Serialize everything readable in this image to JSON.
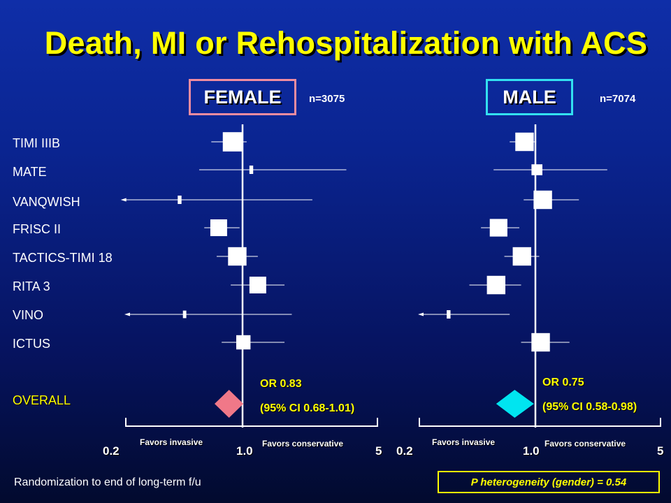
{
  "title": "Death, MI or Rehospitalization with ACS",
  "groups": [
    {
      "label": "FEMALE",
      "n": "n=3075",
      "border_color": "#f08ca0",
      "or_line1": "OR 0.83",
      "or_line2": "(95% CI 0.68-1.01)"
    },
    {
      "label": "MALE",
      "n": "n=7074",
      "border_color": "#33e0f0",
      "or_line1": "OR 0.75",
      "or_line2": "(95% CI 0.58-0.98)"
    }
  ],
  "studies": [
    "TIMI IIIB",
    "MATE",
    "VANQWISH",
    "FRISC II",
    "TACTICS-TIMI 18",
    "RITA 3",
    "VINO",
    "ICTUS"
  ],
  "overall_label": "OVERALL",
  "axis": {
    "tick_low": "0.2",
    "tick_mid": "1.0",
    "tick_high": "5",
    "favors_left": "Favors invasive",
    "favors_right": "Favors conservative"
  },
  "footnote": "Randomization to end of long-term f/u",
  "p_heterogeneity": "P heterogeneity (gender) = 0.54",
  "colors": {
    "title": "#ffff00",
    "female_diamond": "#f07888",
    "male_diamond": "#00e5f0",
    "accent_text": "#ffff00"
  },
  "chart_data": [
    {
      "type": "forest",
      "scale": "log",
      "xlim": [
        0.2,
        5
      ],
      "reference": 1.0,
      "ticks": [
        "0.2",
        "1.0",
        "5"
      ],
      "group": "FEMALE",
      "n": 3075,
      "studies": [
        {
          "name": "TIMI IIIB",
          "or": 0.87,
          "lo": 0.65,
          "hi": 1.05,
          "weight": 0.9
        },
        {
          "name": "MATE",
          "or": 1.11,
          "lo": 0.55,
          "hi": 3.45,
          "weight": 0.25
        },
        {
          "name": "VANQWISH",
          "or": 0.42,
          "lo": 0.19,
          "hi": 2.3,
          "weight": 0.25,
          "arrow_left": true
        },
        {
          "name": "FRISC II",
          "or": 0.72,
          "lo": 0.59,
          "hi": 0.96,
          "weight": 0.75
        },
        {
          "name": "TACTICS-TIMI 18",
          "or": 0.93,
          "lo": 0.7,
          "hi": 1.2,
          "weight": 0.85
        },
        {
          "name": "RITA 3",
          "or": 1.2,
          "lo": 0.85,
          "hi": 1.65,
          "weight": 0.75
        },
        {
          "name": "VINO",
          "or": 0.45,
          "lo": 0.2,
          "hi": 1.8,
          "weight": 0.2,
          "arrow_left": true
        },
        {
          "name": "ICTUS",
          "or": 1.01,
          "lo": 0.75,
          "hi": 1.65,
          "weight": 0.6
        }
      ],
      "overall": {
        "or": 0.83,
        "lo": 0.68,
        "hi": 1.01
      }
    },
    {
      "type": "forest",
      "scale": "log",
      "xlim": [
        0.2,
        5
      ],
      "reference": 1.0,
      "ticks": [
        "0.2",
        "1.0",
        "5"
      ],
      "group": "MALE",
      "n": 7074,
      "studies": [
        {
          "name": "TIMI IIIB",
          "or": 0.86,
          "lo": 0.7,
          "hi": 1.01,
          "weight": 0.85
        },
        {
          "name": "MATE",
          "or": 1.02,
          "lo": 0.56,
          "hi": 2.52,
          "weight": 0.4
        },
        {
          "name": "VANQWISH",
          "or": 1.1,
          "lo": 0.85,
          "hi": 1.75,
          "weight": 0.85
        },
        {
          "name": "FRISC II",
          "or": 0.6,
          "lo": 0.47,
          "hi": 0.8,
          "weight": 0.8
        },
        {
          "name": "TACTICS-TIMI 18",
          "or": 0.83,
          "lo": 0.65,
          "hi": 1.05,
          "weight": 0.85
        },
        {
          "name": "RITA 3",
          "or": 0.58,
          "lo": 0.4,
          "hi": 0.82,
          "weight": 0.85
        },
        {
          "name": "VINO",
          "or": 0.3,
          "lo": 0.2,
          "hi": 0.7,
          "weight": 0.25,
          "arrow_left": true
        },
        {
          "name": "ICTUS",
          "or": 1.07,
          "lo": 0.82,
          "hi": 1.55,
          "weight": 0.85
        }
      ],
      "overall": {
        "or": 0.75,
        "lo": 0.58,
        "hi": 0.98
      }
    }
  ]
}
